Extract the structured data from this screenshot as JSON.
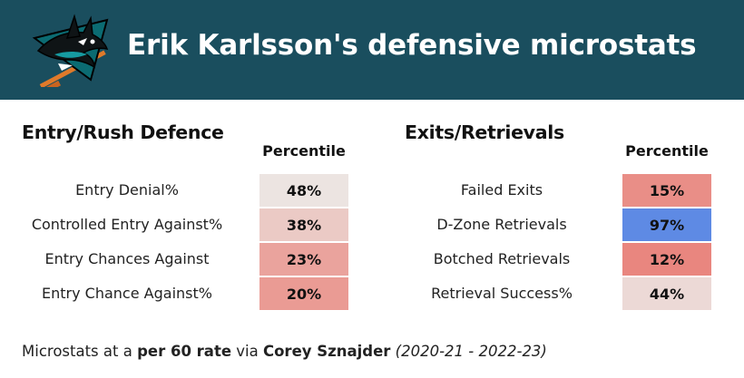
{
  "header": {
    "title": "Erik Karlsson's defensive microstats",
    "logo_icon": "sharks-logo-icon",
    "background_color": "#1a4e5e"
  },
  "chart_data": {
    "type": "table",
    "title": "Erik Karlsson's defensive microstats",
    "value_header": "Percentile",
    "color_scale": {
      "low": "#e8675e",
      "mid": "#ece9e6",
      "high": "#5584e4"
    },
    "sections": [
      {
        "title": "Entry/Rush Defence",
        "rows": [
          {
            "label": "Entry Denial%",
            "value": 48,
            "display": "48%"
          },
          {
            "label": "Controlled Entry Against%",
            "value": 38,
            "display": "38%"
          },
          {
            "label": "Entry Chances Against",
            "value": 23,
            "display": "23%"
          },
          {
            "label": "Entry Chance Against%",
            "value": 20,
            "display": "20%"
          }
        ]
      },
      {
        "title": "Exits/Retrievals",
        "rows": [
          {
            "label": "Failed Exits",
            "value": 15,
            "display": "15%"
          },
          {
            "label": "D-Zone Retrievals",
            "value": 97,
            "display": "97%"
          },
          {
            "label": "Botched Retrievals",
            "value": 12,
            "display": "12%"
          },
          {
            "label": "Retrieval Success%",
            "value": 44,
            "display": "44%"
          }
        ]
      }
    ]
  },
  "footer": {
    "prefix": "Microstats at a ",
    "rate": "per 60 rate",
    "via": " via ",
    "source": "Corey Sznajder",
    "space": " ",
    "seasons": "(2020-21 - 2022-23)"
  }
}
